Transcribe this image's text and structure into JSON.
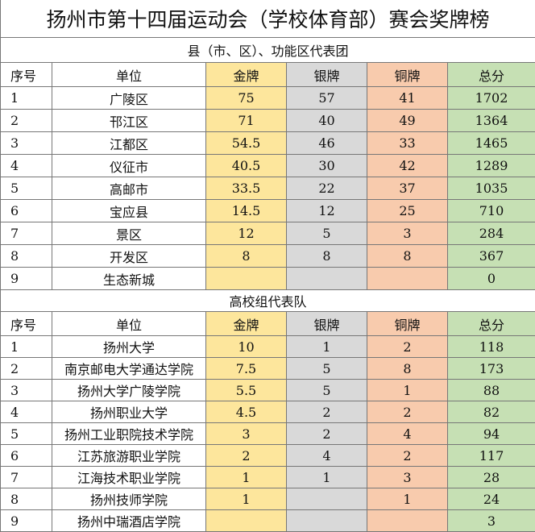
{
  "title": "扬州市第十四届运动会（学校体育部）赛会奖牌榜",
  "sections": [
    {
      "title": "县（市、区）、功能区代表团",
      "header": [
        "序号",
        "单位",
        "金牌",
        "银牌",
        "铜牌",
        "总分"
      ],
      "rows": [
        [
          1,
          "广陵区",
          75,
          57,
          41,
          1702
        ],
        [
          2,
          "邗江区",
          71,
          40,
          49,
          1364
        ],
        [
          3,
          "江都区",
          54.5,
          46,
          33,
          1465
        ],
        [
          4,
          "仪征市",
          40.5,
          30,
          42,
          1289
        ],
        [
          5,
          "高邮市",
          33.5,
          22,
          37,
          1035
        ],
        [
          6,
          "宝应县",
          14.5,
          12,
          25,
          710
        ],
        [
          7,
          "景区",
          12,
          5,
          3,
          284
        ],
        [
          8,
          "开发区",
          8,
          8,
          8,
          367
        ],
        [
          9,
          "生态新城",
          null,
          null,
          null,
          0
        ]
      ]
    },
    {
      "title": "高校组代表队",
      "header": [
        "序号",
        "单位",
        "金牌",
        "银牌",
        "铜牌",
        "总分"
      ],
      "rows": [
        [
          1,
          "扬州大学",
          10,
          1,
          2,
          118
        ],
        [
          2,
          "南京邮电大学通达学院",
          7.5,
          5,
          8,
          173
        ],
        [
          3,
          "扬州大学广陵学院",
          5.5,
          5,
          1,
          88
        ],
        [
          4,
          "扬州职业大学",
          4.5,
          2,
          2,
          82
        ],
        [
          5,
          "扬州工业职院技术学院",
          3,
          2,
          4,
          94
        ],
        [
          6,
          "江苏旅游职业学院",
          2,
          4,
          2,
          117
        ],
        [
          7,
          "江海技术职业学院",
          1,
          1,
          3,
          28
        ],
        [
          8,
          "扬州技师学院",
          1,
          null,
          1,
          24
        ],
        [
          9,
          "扬州中瑞酒店学院",
          null,
          null,
          null,
          3
        ]
      ]
    }
  ]
}
